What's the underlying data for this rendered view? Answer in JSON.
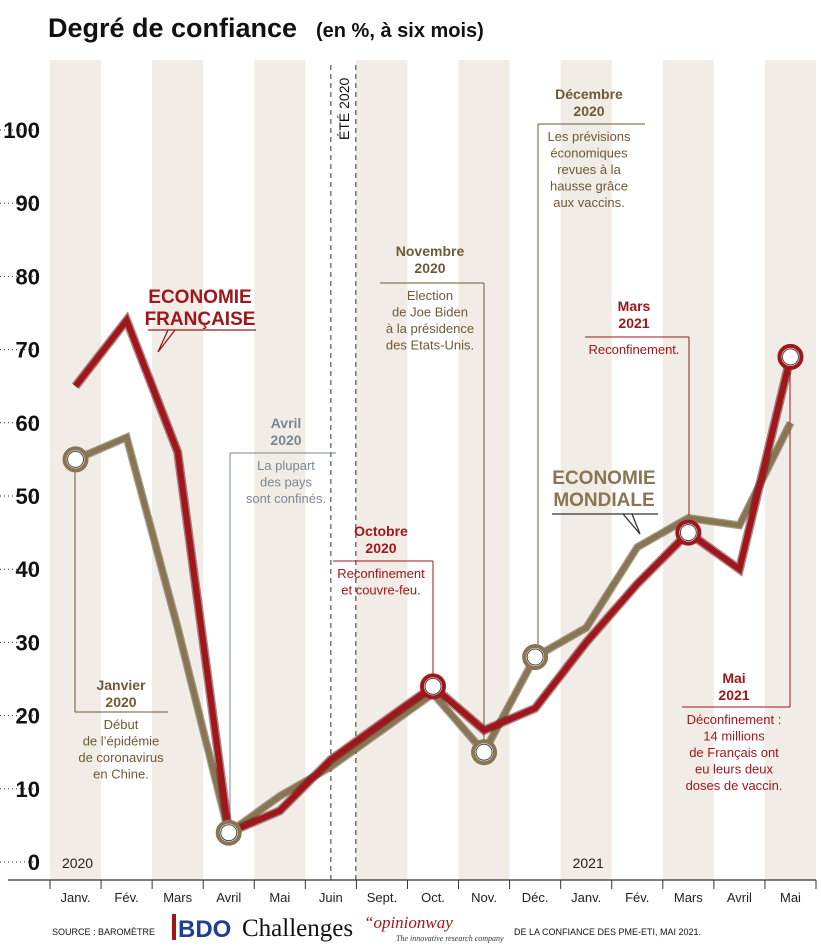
{
  "title": "Degré de confiance",
  "subtitle": "(en %, à six mois)",
  "chart_data": {
    "type": "line",
    "categories": [
      "Janv.",
      "Fév.",
      "Mars",
      "Avril",
      "Mai",
      "Juin",
      "Sept.",
      "Oct.",
      "Nov.",
      "Déc.",
      "Janv.",
      "Fév.",
      "Mars",
      "Avril",
      "Mai"
    ],
    "year_labels": [
      {
        "index": 0,
        "text": "2020"
      },
      {
        "index": 10,
        "text": "2021"
      }
    ],
    "ylim": [
      0,
      100
    ],
    "yticks": [
      0,
      10,
      20,
      30,
      40,
      50,
      60,
      70,
      80,
      90,
      100
    ],
    "grid": false,
    "series": [
      {
        "name": "ECONOMIE FRANÇAISE",
        "color": "#a0161b",
        "values": [
          65,
          74,
          56,
          4,
          7,
          14,
          19,
          24,
          18,
          21,
          30,
          38,
          45,
          40,
          69
        ]
      },
      {
        "name": "ECONOMIE MONDIALE",
        "color": "#8a7552",
        "values": [
          55,
          58,
          32,
          4,
          9,
          13,
          18,
          23,
          15,
          28,
          32,
          43,
          47,
          46,
          60
        ]
      }
    ],
    "summer_label": "ÉTÉ 2020",
    "annotations": [
      {
        "id": "janvier",
        "index": 0,
        "series": 1,
        "title": [
          "Janvier",
          "2020"
        ],
        "body": [
          "Début",
          "de l’épidémie",
          "de coronavirus",
          "en Chine."
        ],
        "color": "#6e5a36"
      },
      {
        "id": "avril",
        "index": 3,
        "series": 1,
        "title": [
          "Avril",
          "2020"
        ],
        "body": [
          "La plupart",
          "des pays",
          "sont confinés."
        ],
        "color": "#7a8894"
      },
      {
        "id": "octobre",
        "index": 7,
        "series": 0,
        "title": [
          "Octobre",
          "2020"
        ],
        "body": [
          "Reconfinement",
          "et couvre-feu."
        ],
        "color": "#a0161b"
      },
      {
        "id": "novembre",
        "index": 8,
        "series": 1,
        "title": [
          "Novembre",
          "2020"
        ],
        "body": [
          "Election",
          "de Joe Biden",
          "à la présidence",
          "des Etats-Unis."
        ],
        "color": "#6e5a36"
      },
      {
        "id": "decembre",
        "index": 9,
        "series": 1,
        "title": [
          "Décembre",
          "2020"
        ],
        "body": [
          "Les prévisions",
          "économiques",
          "revues à la",
          "hausse grâce",
          "aux vaccins."
        ],
        "color": "#6e5a36"
      },
      {
        "id": "mars",
        "index": 12,
        "series": 0,
        "title": [
          "Mars",
          "2021"
        ],
        "body": [
          "Reconfinement."
        ],
        "color": "#a0161b"
      },
      {
        "id": "mai",
        "index": 14,
        "series": 0,
        "title": [
          "Mai",
          "2021"
        ],
        "body": [
          "Déconfinement :",
          "14 millions",
          "de Français ont",
          "eu leurs deux",
          "doses de vaccin."
        ],
        "color": "#a0161b"
      }
    ]
  },
  "footer": {
    "source_prefix": "SOURCE : BAROMÈTRE",
    "logo_bdo": "BDO",
    "logo_challenges": "Challenges",
    "logo_opinionway": "“opinionway",
    "logo_opinionway_sub": "The innovative research company",
    "source_suffix": "DE LA CONFIANCE DES PME-ETI, MAI 2021."
  },
  "colors": {
    "stripe": "#f1ece6",
    "axis": "#333333"
  }
}
